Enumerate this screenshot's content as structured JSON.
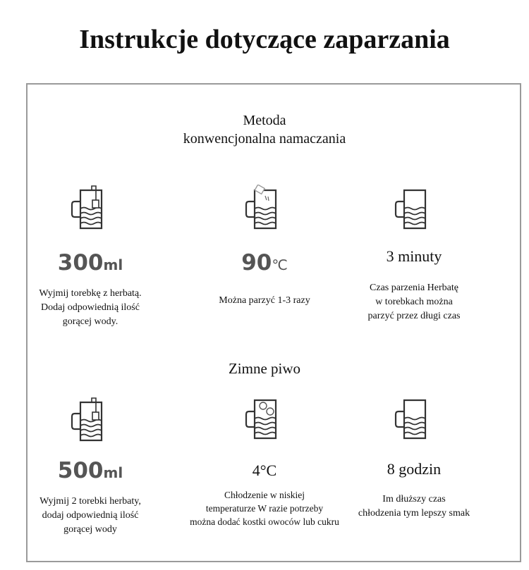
{
  "title": "Instrukcje dotyczące zaparzania",
  "section1": {
    "title_line1": "Metoda",
    "title_line2": "konwencjonalna namaczania",
    "items": [
      {
        "icon": "mug-teabag-icon",
        "value": "300",
        "unit": "ml",
        "desc": [
          "Wyjmij torebkę z herbatą.",
          "Dodaj odpowiednią ilość",
          "gorącej wody."
        ]
      },
      {
        "icon": "mug-pouring-icon",
        "value": "90",
        "unit": "℃",
        "desc": [
          "Można parzyć 1-3 razy"
        ]
      },
      {
        "icon": "mug-icon",
        "value": "3 minuty",
        "desc": [
          "Czas parzenia Herbatę",
          "w torebkach można",
          "parzyć przez długi czas"
        ]
      }
    ]
  },
  "section2": {
    "title": "Zimne piwo",
    "items": [
      {
        "icon": "mug-teabag-icon",
        "value": "500",
        "unit": "ml",
        "desc": [
          "Wyjmij 2 torebki herbaty,",
          "dodaj odpowiednią ilość",
          "gorącej wody"
        ]
      },
      {
        "icon": "mug-fruit-icon",
        "value": "4°C",
        "desc": [
          "Chłodzenie w niskiej",
          "temperaturze W razie potrzeby",
          "można dodać kostki owoców lub cukru"
        ]
      },
      {
        "icon": "mug-icon",
        "value": "8 godzin",
        "desc": [
          "Im dłuższy czas",
          "chłodzenia tym lepszy smak"
        ]
      }
    ]
  }
}
